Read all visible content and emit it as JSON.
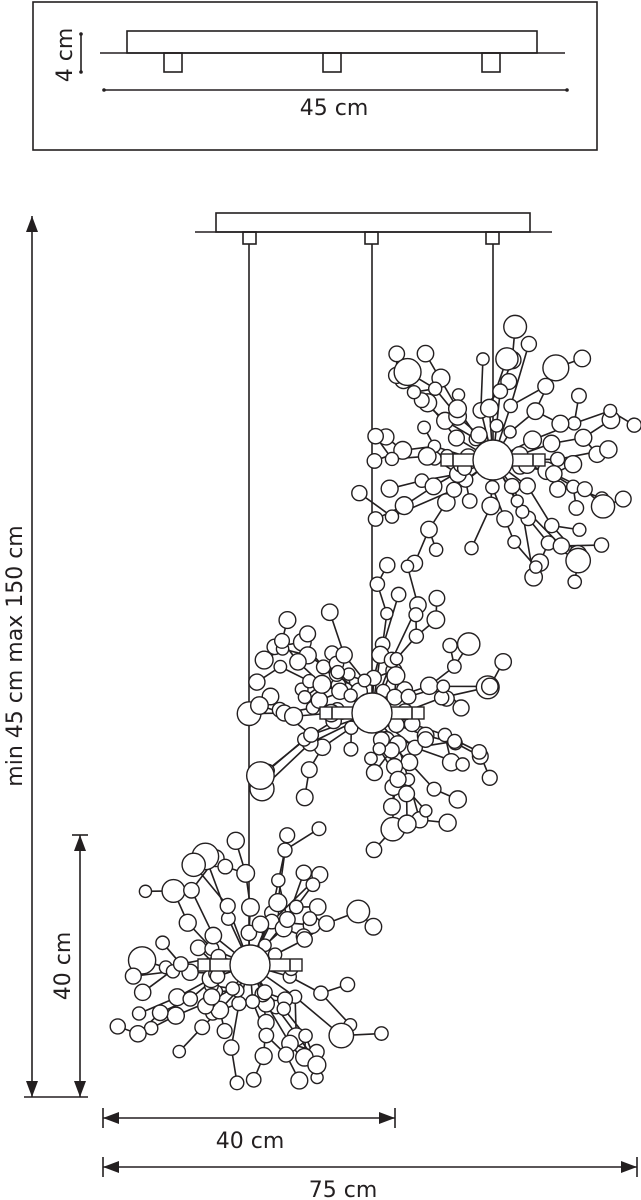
{
  "canopy_view": {
    "height_label": "4 cm",
    "width_label": "45 cm"
  },
  "main_view": {
    "drop_label": "min 45 cm max 150 cm",
    "shade_height_label": "40 cm",
    "shade_width_label": "40 cm",
    "total_width_label": "75 cm"
  },
  "line_color": "#231f20"
}
